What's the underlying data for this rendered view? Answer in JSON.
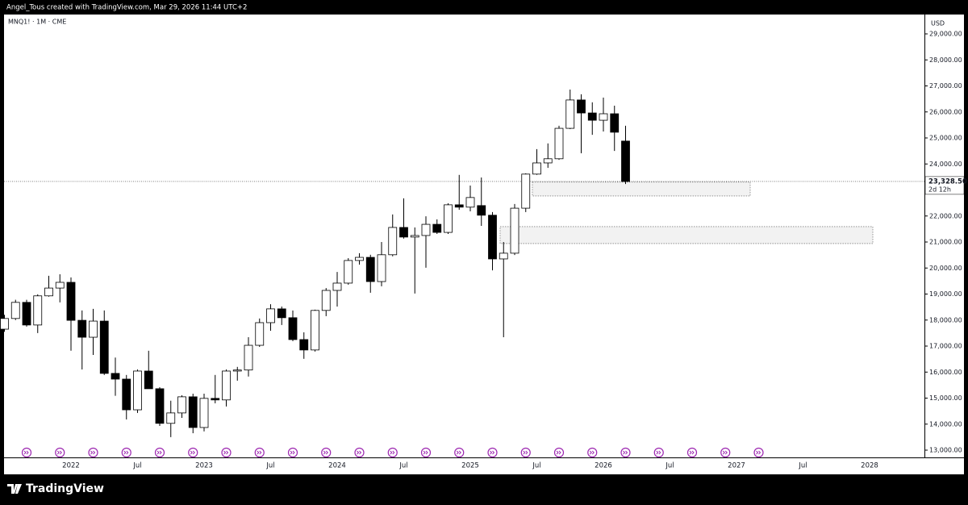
{
  "header": "Angel_Tous created with TradingView.com, Mar 29, 2026 11:44 UTC+2",
  "footer": "TradingView",
  "chart_data": {
    "type": "candlestick",
    "title": "MNQ1! · 1M · CME",
    "currency": "USD",
    "categories": [
      null,
      null,
      null,
      null,
      null,
      null,
      "2022",
      null,
      null,
      null,
      null,
      null,
      "Jul",
      null,
      null,
      null,
      null,
      null,
      "2023",
      null,
      null,
      null,
      null,
      null,
      "Jul",
      null,
      null,
      null,
      null,
      null,
      "2024",
      null,
      null,
      null,
      null,
      null,
      "Jul",
      null,
      null,
      null,
      null,
      null,
      "2025",
      null,
      null,
      null,
      null,
      null,
      "Jul",
      null,
      null,
      null,
      null,
      null,
      "2026",
      null,
      null,
      null,
      null,
      null,
      "Jul",
      null,
      null,
      null,
      null,
      null,
      "2027",
      null,
      null,
      null,
      null,
      null,
      "Jul",
      null,
      null,
      null,
      null,
      null,
      "2028"
    ],
    "open": [
      17650,
      18060,
      18680,
      17810,
      18930,
      19230,
      19450,
      17990,
      17340,
      17960,
      15950,
      15730,
      14550,
      16040,
      15360,
      14030,
      14430,
      15050,
      13870,
      14990,
      14930,
      16040,
      16080,
      17030,
      17900,
      18430,
      18090,
      17250,
      16850,
      18370,
      19140,
      19420,
      20290,
      20410,
      19480,
      20510,
      21560,
      21190,
      21250,
      21680,
      21370,
      22430,
      22340,
      22400,
      22030,
      20350,
      20570,
      22300,
      23610,
      24040,
      24200,
      25370,
      26460,
      25960,
      25680,
      25930,
      24880,
      null,
      null,
      null,
      null,
      null,
      null,
      null,
      null,
      null,
      null,
      null,
      null,
      null,
      null,
      null,
      null,
      null,
      null,
      null,
      null,
      null,
      null
    ],
    "high": [
      18200,
      18780,
      18780,
      18990,
      19700,
      19760,
      19640,
      18370,
      18430,
      18370,
      16560,
      15890,
      16100,
      16820,
      15420,
      14900,
      15110,
      15170,
      15170,
      15890,
      16100,
      16200,
      17340,
      18060,
      18610,
      18520,
      18370,
      17530,
      18400,
      19230,
      19850,
      20380,
      20570,
      20510,
      21000,
      22060,
      22680,
      21560,
      21990,
      21870,
      22490,
      23580,
      23170,
      23480,
      22150,
      21000,
      22460,
      23640,
      24570,
      24790,
      25470,
      26860,
      26680,
      26370,
      26550,
      26240,
      25470,
      null,
      null,
      null,
      null,
      null,
      null,
      null,
      null,
      null,
      null,
      null,
      null,
      null,
      null,
      null,
      null,
      null,
      null,
      null,
      null,
      null,
      null
    ],
    "low": [
      17550,
      18000,
      17750,
      17500,
      18900,
      18680,
      16820,
      16100,
      16660,
      15890,
      15090,
      14180,
      14430,
      15360,
      13930,
      13500,
      14240,
      13650,
      13720,
      14800,
      14680,
      15670,
      15830,
      16970,
      17590,
      17810,
      17190,
      16510,
      16790,
      18150,
      18520,
      19360,
      20130,
      19050,
      19300,
      20450,
      21130,
      19020,
      20010,
      21310,
      21310,
      22240,
      22180,
      21620,
      19910,
      17340,
      20500,
      22150,
      23580,
      23850,
      24160,
      25340,
      24410,
      25120,
      25250,
      24500,
      23230,
      null,
      null,
      null,
      null,
      null,
      null,
      null,
      null,
      null,
      null,
      null,
      null,
      null,
      null,
      null,
      null,
      null,
      null,
      null,
      null,
      null,
      null
    ],
    "close": [
      18060,
      18680,
      17810,
      18930,
      19230,
      19450,
      17990,
      17340,
      17960,
      15950,
      15730,
      14550,
      16040,
      15360,
      14030,
      14430,
      15050,
      13870,
      14990,
      14930,
      16040,
      16080,
      17030,
      17900,
      18430,
      18090,
      17250,
      16850,
      18370,
      19140,
      19420,
      20290,
      20410,
      19480,
      20510,
      21560,
      21190,
      21250,
      21680,
      21370,
      22430,
      22340,
      22710,
      22030,
      20350,
      20570,
      22300,
      23610,
      24040,
      24200,
      25370,
      26460,
      25960,
      25680,
      25930,
      25220,
      23328.5,
      null,
      null,
      null,
      null,
      null,
      null,
      null,
      null,
      null,
      null,
      null,
      null,
      null,
      null,
      null,
      null,
      null,
      null,
      null,
      null,
      null,
      null
    ],
    "up_color": "#ffffff",
    "down_color": "#000000",
    "ylim": [
      13000,
      29000
    ],
    "yticks": [
      {
        "value": 13000,
        "label": "13,000.00"
      },
      {
        "value": 14000,
        "label": "14,000.00"
      },
      {
        "value": 15000,
        "label": "15,000.00"
      },
      {
        "value": 16000,
        "label": "16,000.00"
      },
      {
        "value": 17000,
        "label": "17,000.00"
      },
      {
        "value": 18000,
        "label": "18,000.00"
      },
      {
        "value": 19000,
        "label": "19,000.00"
      },
      {
        "value": 20000,
        "label": "20,000.00"
      },
      {
        "value": 21000,
        "label": "21,000.00"
      },
      {
        "value": 22000,
        "label": "22,000.00"
      },
      {
        "value": 23000,
        "label": "23,000.00"
      },
      {
        "value": 24000,
        "label": "24,000.00"
      },
      {
        "value": 25000,
        "label": "25,000.00"
      },
      {
        "value": 26000,
        "label": "26,000.00"
      },
      {
        "value": 27000,
        "label": "27,000.00"
      },
      {
        "value": 28000,
        "label": "28,000.00"
      },
      {
        "value": 29000,
        "label": "29,000.00"
      }
    ],
    "last_price": {
      "value": 23328.5,
      "label": "23,328.50"
    },
    "countdown": "2d 12h",
    "zones": [
      {
        "high": 23300,
        "low": 22770
      },
      {
        "high": 21590,
        "low": 20940
      }
    ]
  }
}
